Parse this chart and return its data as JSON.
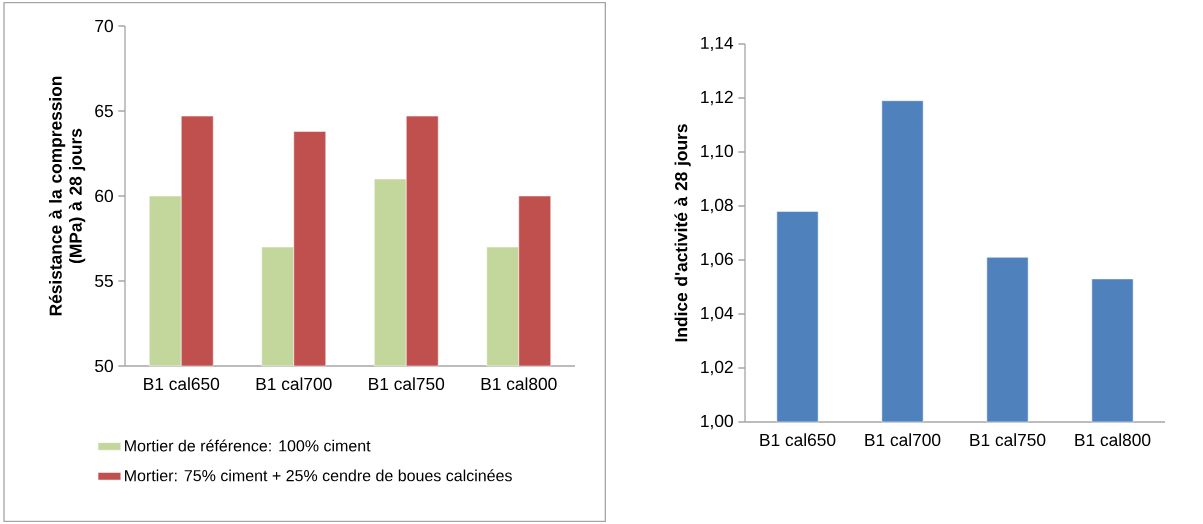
{
  "chart_data": [
    {
      "type": "bar",
      "ylabel": "Résistance à la compression (MPa) à 28 jours",
      "categories": [
        "B1 cal650",
        "B1 cal700",
        "B1 cal750",
        "B1 cal800"
      ],
      "series": [
        {
          "name": "Mortier de référence: 100% ciment",
          "color": "#c3d69b",
          "values": [
            60,
            57,
            61,
            57
          ]
        },
        {
          "name": "Mortier: 75% ciment + 25% cendre de boues calcinées",
          "color": "#c0504d",
          "values": [
            64.7,
            63.8,
            64.7,
            60
          ]
        }
      ],
      "ylim": [
        50,
        70
      ],
      "yticks": [
        50,
        55,
        60,
        65,
        70
      ],
      "grid": false,
      "legend": "bottom"
    },
    {
      "type": "bar",
      "ylabel": "Indice d'activité à 28 jours",
      "categories": [
        "B1 cal650",
        "B1 cal700",
        "B1 cal750",
        "B1 cal800"
      ],
      "series": [
        {
          "color": "#4f81bd",
          "values": [
            1.078,
            1.119,
            1.061,
            1.053
          ]
        }
      ],
      "ylim": [
        1.0,
        1.14
      ],
      "yticks": [
        {
          "value": 1.0,
          "label": "1,00"
        },
        {
          "value": 1.02,
          "label": "1,02"
        },
        {
          "value": 1.04,
          "label": "1,04"
        },
        {
          "value": 1.06,
          "label": "1,06"
        },
        {
          "value": 1.08,
          "label": "1,08"
        },
        {
          "value": 1.1,
          "label": "1,10"
        },
        {
          "value": 1.12,
          "label": "1,12"
        },
        {
          "value": 1.14,
          "label": "1,14"
        }
      ],
      "grid": false,
      "legend": false
    }
  ]
}
